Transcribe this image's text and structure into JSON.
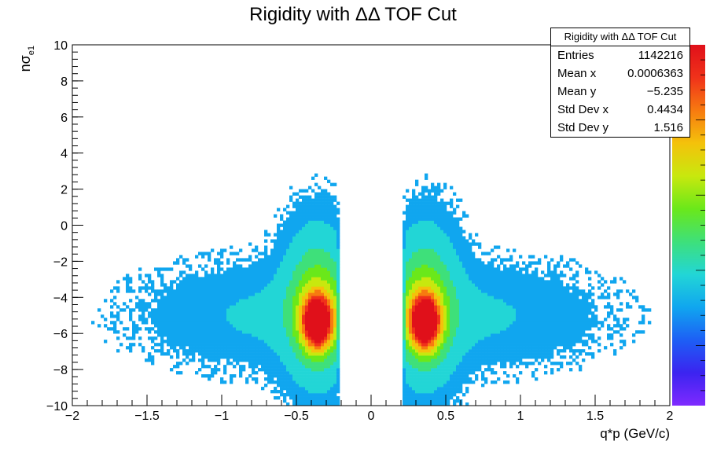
{
  "chart_data": {
    "type": "heatmap",
    "title": "Rigidity with ΔΔ TOF Cut",
    "xlabel": "q*p (GeV/c)",
    "ylabel": "nσ",
    "ylabel_sub": "e1",
    "xlim": [
      -2,
      2
    ],
    "ylim": [
      -10,
      10
    ],
    "x_ticks": [
      "−2",
      "−1.5",
      "−1",
      "−0.5",
      "0",
      "0.5",
      "1",
      "1.5",
      "2"
    ],
    "y_ticks": [
      "−10",
      "−8",
      "−6",
      "−4",
      "−2",
      "0",
      "2",
      "4",
      "6",
      "8",
      "10"
    ],
    "x_tick_values": [
      -2,
      -1.5,
      -1,
      -0.5,
      0,
      0.5,
      1,
      1.5,
      2
    ],
    "y_tick_values": [
      -10,
      -8,
      -6,
      -4,
      -2,
      0,
      2,
      4,
      6,
      8,
      10
    ],
    "peaks": [
      {
        "x": -0.36,
        "y": -5.4
      },
      {
        "x": 0.36,
        "y": -5.4
      }
    ],
    "gap": [
      -0.2,
      0.2
    ],
    "grid": false,
    "colorscale": "rainbow"
  },
  "stats": {
    "title": "Rigidity with ΔΔ TOF Cut",
    "rows": [
      {
        "label": "Entries",
        "value": "1142216"
      },
      {
        "label": "Mean x",
        "value": "0.0006363"
      },
      {
        "label": "Mean y",
        "value": "−5.235"
      },
      {
        "label": "Std Dev x",
        "value": "0.4434"
      },
      {
        "label": "Std Dev y",
        "value": "1.516"
      }
    ]
  },
  "colors": {
    "palette": [
      "#7f2aff",
      "#3b24f0",
      "#1d5ff5",
      "#10a6ef",
      "#22d6d6",
      "#3ee07a",
      "#6ae81a",
      "#c8e80e",
      "#f4c20b",
      "#f77a10",
      "#f0321a",
      "#e0101a"
    ]
  }
}
